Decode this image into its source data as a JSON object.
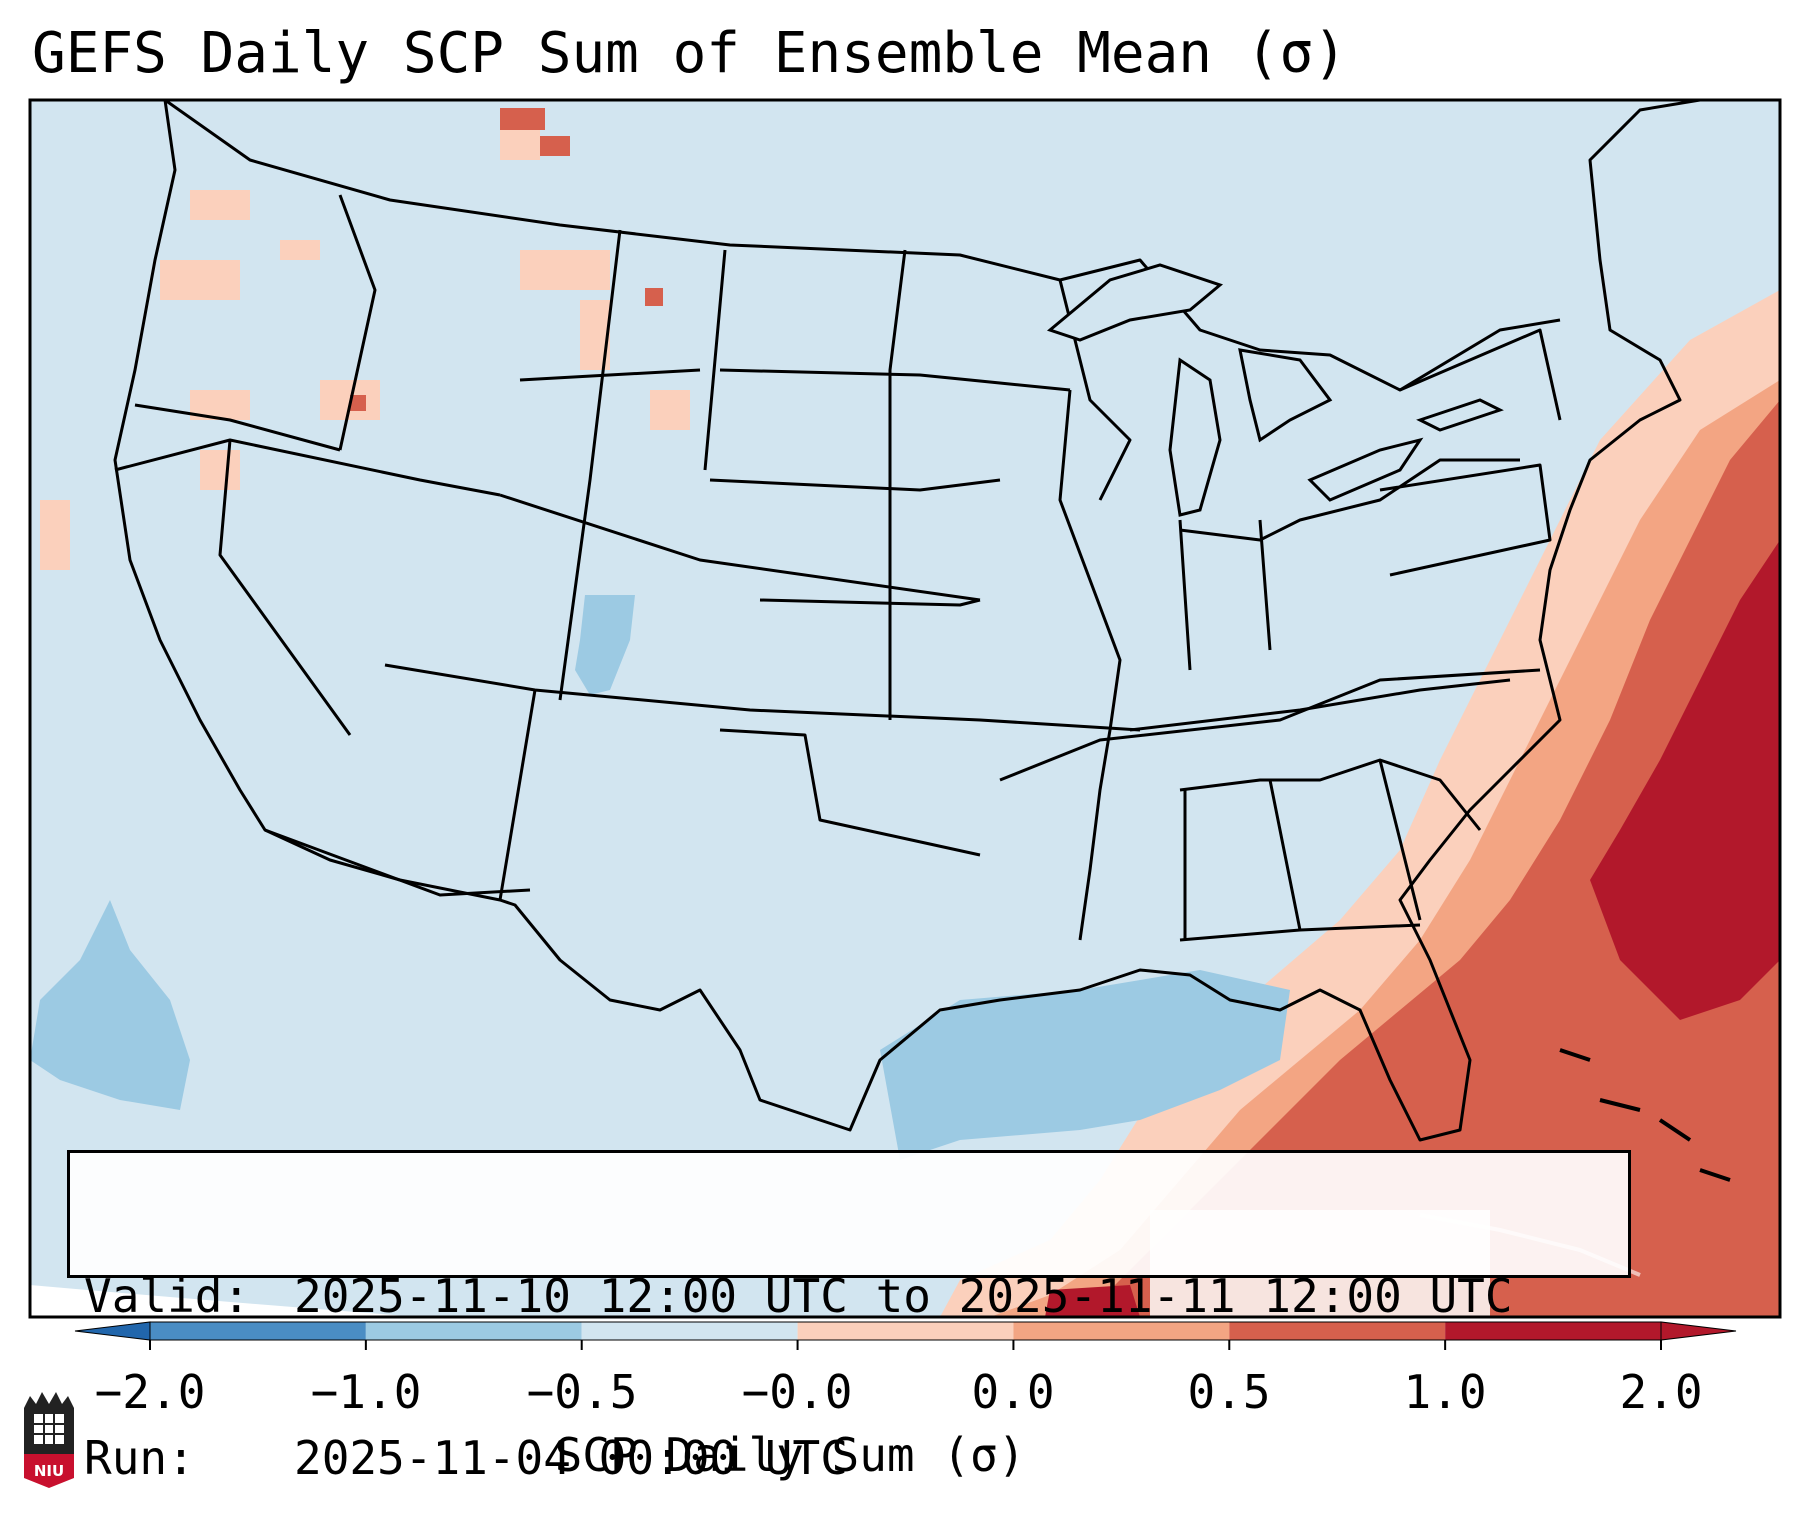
{
  "title": "GEFS Daily SCP Sum of Ensemble Mean (σ)",
  "info": {
    "valid_label": "Valid:",
    "valid_value": "2025-11-10 12:00 UTC to 2025-11-11 12:00 UTC",
    "run_label": "Run:",
    "run_value": "2025-11-04 00:00 UTC"
  },
  "colorbar": {
    "label": "SCP Daily Sum (σ)",
    "ticks": [
      "−2.0",
      "−1.0",
      "−0.5",
      "−0.0",
      "0.0",
      "0.5",
      "1.0",
      "2.0"
    ],
    "colors": [
      "#4a8dc4",
      "#9ccae3",
      "#d2e5f0",
      "#fdfbf9",
      "#fbd0bc",
      "#f3a583",
      "#d6604d",
      "#b2182b"
    ],
    "extend_low": "#2166ac",
    "extend_high": "#b2182b"
  },
  "map": {
    "ocean_color": "#d2e5f0",
    "land_color": "#d2e5f0",
    "border_color": "#000000"
  },
  "logo": {
    "text": "NIU"
  }
}
